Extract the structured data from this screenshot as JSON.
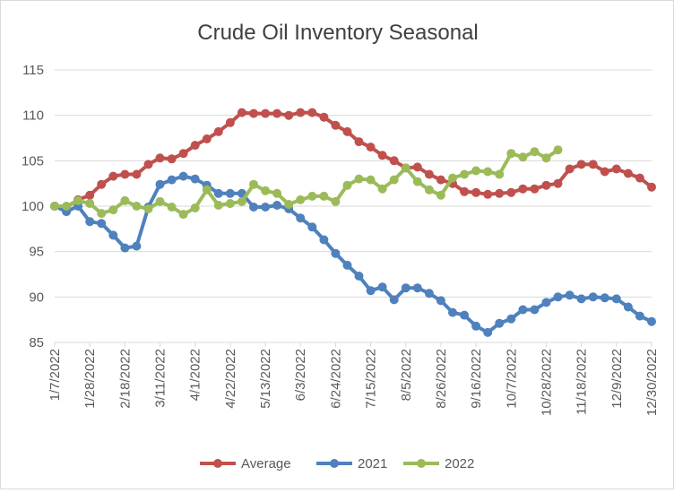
{
  "chart_data": {
    "type": "line",
    "title": "Crude Oil Inventory Seasonal",
    "ylim": [
      85,
      115
    ],
    "yticks": [
      "85",
      "90",
      "95",
      "100",
      "105",
      "110",
      "115"
    ],
    "grid": true,
    "legend_position": "bottom",
    "xtick_labels": [
      "1/7/2022",
      "1/28/2022",
      "2/18/2022",
      "3/11/2022",
      "4/1/2022",
      "4/22/2022",
      "5/13/2022",
      "6/3/2022",
      "6/24/2022",
      "7/15/2022",
      "8/5/2022",
      "8/26/2022",
      "9/16/2022",
      "10/7/2022",
      "10/28/2022",
      "11/18/2022",
      "12/9/2022",
      "12/30/2022"
    ],
    "x_start": "1/7/2022",
    "x_step_days": 7,
    "series": [
      {
        "name": "Average",
        "color": "#c0504d",
        "values": [
          100.0,
          99.9,
          100.7,
          101.2,
          102.4,
          103.3,
          103.5,
          103.5,
          104.6,
          105.3,
          105.2,
          105.8,
          106.7,
          107.4,
          108.2,
          109.2,
          110.3,
          110.2,
          110.2,
          110.2,
          110.0,
          110.3,
          110.3,
          109.8,
          108.9,
          108.2,
          107.1,
          106.5,
          105.6,
          105.0,
          104.2,
          104.3,
          103.5,
          102.9,
          102.5,
          101.6,
          101.5,
          101.3,
          101.4,
          101.5,
          101.9,
          101.9,
          102.3,
          102.5,
          104.1,
          104.6,
          104.6,
          103.8,
          104.1,
          103.6,
          103.1,
          102.1
        ]
      },
      {
        "name": "2021",
        "color": "#4f81bd",
        "values": [
          100.0,
          99.4,
          100.0,
          98.3,
          98.1,
          96.8,
          95.4,
          95.6,
          99.9,
          102.4,
          102.9,
          103.3,
          103.0,
          102.3,
          101.4,
          101.4,
          101.4,
          99.9,
          99.9,
          100.1,
          99.7,
          98.7,
          97.7,
          96.3,
          94.8,
          93.5,
          92.3,
          90.7,
          91.1,
          89.7,
          91.0,
          91.0,
          90.4,
          89.6,
          88.3,
          88.0,
          86.8,
          86.1,
          87.1,
          87.6,
          88.6,
          88.6,
          89.4,
          90.0,
          90.2,
          89.8,
          90.0,
          89.9,
          89.8,
          88.9,
          87.9,
          87.3
        ]
      },
      {
        "name": "2022",
        "color": "#9bbb59",
        "values": [
          100.0,
          100.0,
          100.6,
          100.3,
          99.2,
          99.6,
          100.6,
          100.0,
          99.7,
          100.5,
          99.9,
          99.1,
          99.8,
          101.8,
          100.1,
          100.3,
          100.5,
          102.4,
          101.7,
          101.4,
          100.2,
          100.7,
          101.1,
          101.1,
          100.5,
          102.3,
          103.0,
          102.9,
          101.9,
          102.9,
          104.2,
          102.7,
          101.8,
          101.2,
          103.1,
          103.5,
          103.9,
          103.8,
          103.5,
          105.8,
          105.4,
          106.0,
          105.3,
          106.2
        ]
      }
    ]
  }
}
